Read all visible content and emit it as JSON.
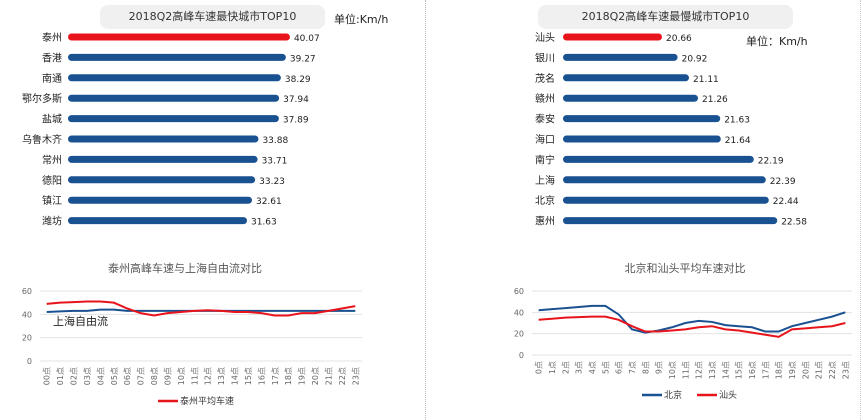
{
  "chart_data": [
    {
      "type": "bar",
      "orientation": "horizontal",
      "title": "2018Q2高峰车速最快城市TOP10",
      "unit": "单位:Km/h",
      "categories": [
        "泰州",
        "香港",
        "南通",
        "鄂尔多斯",
        "盐城",
        "乌鲁木齐",
        "常州",
        "德阳",
        "镇江",
        "潍坊"
      ],
      "values": [
        40.07,
        39.27,
        38.29,
        37.94,
        37.89,
        33.88,
        33.71,
        33.23,
        32.61,
        31.63
      ],
      "highlight_color": "#e8141b",
      "bar_color": "#1a5191"
    },
    {
      "type": "bar",
      "orientation": "horizontal",
      "title": "2018Q2高峰车速最慢城市TOP10",
      "unit": "单位：Km/h",
      "categories": [
        "汕头",
        "银川",
        "茂名",
        "赣州",
        "泰安",
        "海口",
        "南宁",
        "上海",
        "北京",
        "惠州"
      ],
      "values": [
        20.66,
        20.92,
        21.11,
        21.26,
        21.63,
        21.64,
        22.19,
        22.39,
        22.44,
        22.58
      ],
      "highlight_color": "#e8141b",
      "bar_color": "#1a5191"
    },
    {
      "type": "line",
      "title": "泰州高峰车速与上海自由流对比",
      "ylim": [
        0,
        60
      ],
      "yticks": [
        0,
        20,
        40,
        60
      ],
      "categories": [
        "00点",
        "01点",
        "02点",
        "03点",
        "04点",
        "05点",
        "06点",
        "07点",
        "08点",
        "09点",
        "10点",
        "11点",
        "12点",
        "13点",
        "14点",
        "15点",
        "16点",
        "17点",
        "18点",
        "19点",
        "20点",
        "21点",
        "22点",
        "23点"
      ],
      "annotation": "上海自由流",
      "series": [
        {
          "name": "上海自由流",
          "color": "#1a5191",
          "in_legend": false,
          "values": [
            42,
            42.5,
            43,
            43,
            44,
            44,
            43,
            43,
            43,
            43,
            43,
            43,
            43,
            43,
            43,
            43,
            43,
            43,
            43,
            43,
            43,
            43,
            43,
            43
          ]
        },
        {
          "name": "泰州平均车速",
          "color": "#e8141b",
          "values": [
            49,
            50,
            50.5,
            51,
            51,
            50,
            45,
            41,
            39,
            41,
            42,
            43,
            43.5,
            43,
            42,
            42,
            41,
            39,
            39,
            41,
            41,
            43,
            45,
            47
          ]
        }
      ]
    },
    {
      "type": "line",
      "title": "北京和汕头平均车速对比",
      "ylim": [
        0,
        60
      ],
      "yticks": [
        0,
        20,
        40,
        60
      ],
      "categories": [
        "0点",
        "1点",
        "2点",
        "3点",
        "4点",
        "5点",
        "6点",
        "7点",
        "8点",
        "9点",
        "10点",
        "11点",
        "12点",
        "13点",
        "14点",
        "15点",
        "16点",
        "17点",
        "18点",
        "19点",
        "20点",
        "21点",
        "22点",
        "23点"
      ],
      "series": [
        {
          "name": "北京",
          "color": "#1a5191",
          "values": [
            42,
            43,
            44,
            45,
            46,
            46,
            38,
            24,
            21,
            23,
            26,
            30,
            32,
            31,
            28,
            27,
            26,
            22,
            22,
            27,
            30,
            33,
            36,
            40
          ]
        },
        {
          "name": "汕头",
          "color": "#e8141b",
          "values": [
            33,
            34,
            35,
            35.5,
            36,
            36,
            33,
            27,
            22,
            22,
            23,
            24,
            26,
            27,
            24,
            23,
            21,
            19,
            17,
            24,
            25,
            26,
            27,
            30
          ]
        }
      ]
    }
  ]
}
